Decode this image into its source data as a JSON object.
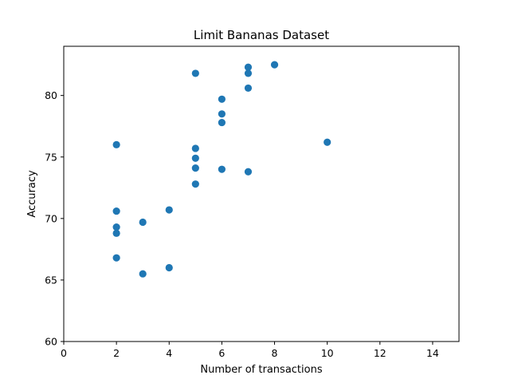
{
  "chart_data": {
    "type": "scatter",
    "title": "Limit Bananas Dataset",
    "xlabel": "Number of transactions",
    "ylabel": "Accuracy",
    "xlim": [
      0,
      15
    ],
    "ylim": [
      60,
      84
    ],
    "xticks": [
      0,
      2,
      4,
      6,
      8,
      10,
      12,
      14
    ],
    "yticks": [
      60,
      65,
      70,
      75,
      80
    ],
    "grid": false,
    "marker_color": "#1f77b4",
    "points": [
      {
        "x": 2,
        "y": 76.0
      },
      {
        "x": 2,
        "y": 70.6
      },
      {
        "x": 2,
        "y": 69.3
      },
      {
        "x": 2,
        "y": 68.8
      },
      {
        "x": 2,
        "y": 66.8
      },
      {
        "x": 3,
        "y": 69.7
      },
      {
        "x": 3,
        "y": 65.5
      },
      {
        "x": 4,
        "y": 70.7
      },
      {
        "x": 4,
        "y": 66.0
      },
      {
        "x": 5,
        "y": 81.8
      },
      {
        "x": 5,
        "y": 75.7
      },
      {
        "x": 5,
        "y": 74.9
      },
      {
        "x": 5,
        "y": 74.1
      },
      {
        "x": 5,
        "y": 72.8
      },
      {
        "x": 6,
        "y": 79.7
      },
      {
        "x": 6,
        "y": 78.5
      },
      {
        "x": 6,
        "y": 77.8
      },
      {
        "x": 6,
        "y": 74.0
      },
      {
        "x": 7,
        "y": 82.3
      },
      {
        "x": 7,
        "y": 81.8
      },
      {
        "x": 7,
        "y": 80.6
      },
      {
        "x": 7,
        "y": 73.8
      },
      {
        "x": 8,
        "y": 82.5
      },
      {
        "x": 10,
        "y": 76.2
      }
    ]
  }
}
